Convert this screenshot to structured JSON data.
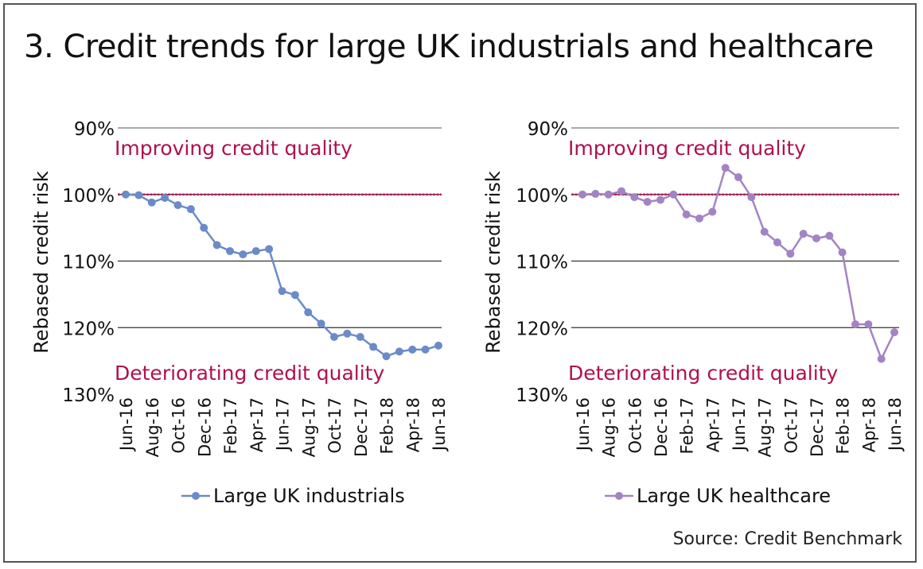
{
  "title": "3. Credit trends for large UK industrials and healthcare",
  "source": "Source: Credit Benchmark",
  "chart_data": [
    {
      "type": "line",
      "ylabel": "Rebased credit risk",
      "yticks": [
        "90%",
        "100%",
        "110%",
        "120%",
        "130%"
      ],
      "ylim": [
        90,
        130
      ],
      "y_inverted": true,
      "grid": true,
      "reference_line": 100,
      "annotation_top": "Improving credit quality",
      "annotation_bottom": "Deteriorating credit quality",
      "x": [
        "Jun-16",
        "Jul-16",
        "Aug-16",
        "Sep-16",
        "Oct-16",
        "Nov-16",
        "Dec-16",
        "Jan-17",
        "Feb-17",
        "Mar-17",
        "Apr-17",
        "May-17",
        "Jun-17",
        "Jul-17",
        "Aug-17",
        "Sep-17",
        "Oct-17",
        "Nov-17",
        "Dec-17",
        "Jan-18",
        "Feb-18",
        "Mar-18",
        "Apr-18",
        "May-18",
        "Jun-18"
      ],
      "xticks": [
        "Jun-16",
        "Aug-16",
        "Oct-16",
        "Dec-16",
        "Feb-17",
        "Apr-17",
        "Jun-17",
        "Aug-17",
        "Oct-17",
        "Dec-17",
        "Feb-18",
        "Apr-18",
        "Jun-18"
      ],
      "series": [
        {
          "name": "Large UK industrials",
          "color": "#6a8bc8",
          "values": [
            100,
            100.1,
            101.2,
            100.5,
            101.6,
            102.2,
            105,
            107.6,
            108.5,
            109,
            108.5,
            108.2,
            114.5,
            115.1,
            117.7,
            119.4,
            121.4,
            120.9,
            121.4,
            122.9,
            124.3,
            123.6,
            123.3,
            123.3,
            122.7
          ]
        }
      ],
      "legend": "bottom"
    },
    {
      "type": "line",
      "ylabel": "Rebased credit risk",
      "yticks": [
        "90%",
        "100%",
        "110%",
        "120%",
        "130%"
      ],
      "ylim": [
        90,
        130
      ],
      "y_inverted": true,
      "grid": true,
      "reference_line": 100,
      "annotation_top": "Improving credit quality",
      "annotation_bottom": "Deteriorating credit quality",
      "x": [
        "Jun-16",
        "Jul-16",
        "Aug-16",
        "Sep-16",
        "Oct-16",
        "Nov-16",
        "Dec-16",
        "Jan-17",
        "Feb-17",
        "Mar-17",
        "Apr-17",
        "May-17",
        "Jun-17",
        "Jul-17",
        "Aug-17",
        "Sep-17",
        "Oct-17",
        "Nov-17",
        "Dec-17",
        "Jan-18",
        "Feb-18",
        "Mar-18",
        "Apr-18",
        "May-18",
        "Jun-18"
      ],
      "xticks": [
        "Jun-16",
        "Aug-16",
        "Oct-16",
        "Dec-16",
        "Feb-17",
        "Apr-17",
        "Jun-17",
        "Aug-17",
        "Oct-17",
        "Dec-17",
        "Feb-18",
        "Apr-18",
        "Jun-18"
      ],
      "series": [
        {
          "name": "Large UK healthcare",
          "color": "#a383c4",
          "values": [
            100,
            99.9,
            100,
            99.5,
            100.4,
            101.1,
            100.8,
            100,
            103,
            103.6,
            102.6,
            96,
            97.4,
            100.4,
            105.6,
            107.2,
            108.9,
            105.9,
            106.6,
            106.2,
            108.7,
            119.5,
            119.5,
            124.7,
            120.7
          ]
        }
      ],
      "legend": "bottom"
    }
  ],
  "colors": {
    "reference": "#c0185a",
    "annotation": "#b0104e",
    "grid": "#333333"
  }
}
